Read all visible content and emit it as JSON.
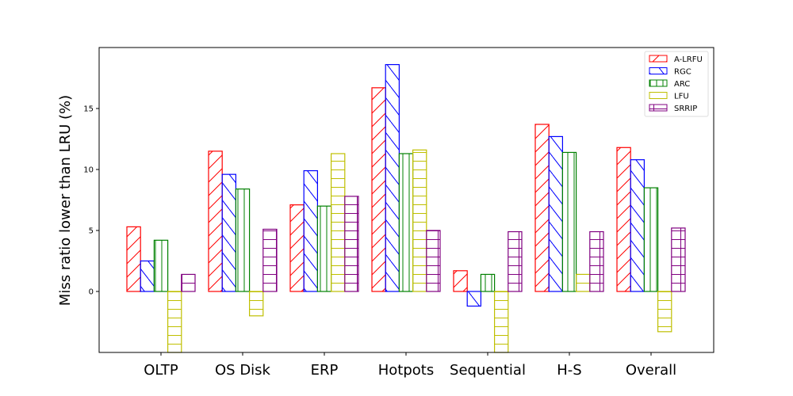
{
  "chart_data": {
    "type": "bar",
    "categories": [
      "OLTP",
      "OS Disk",
      "ERP",
      "Hotpots",
      "Sequential",
      "H-S",
      "Overall"
    ],
    "series": [
      {
        "name": "A-LRFU",
        "values": [
          5.3,
          11.5,
          7.1,
          16.7,
          1.7,
          13.7,
          11.8
        ],
        "color": "#ff0000",
        "hatch": "diagonal-up"
      },
      {
        "name": "RGC",
        "values": [
          2.5,
          9.6,
          9.9,
          18.6,
          -1.2,
          12.7,
          10.8
        ],
        "color": "#0000ff",
        "hatch": "diagonal-down"
      },
      {
        "name": "ARC",
        "values": [
          4.2,
          8.4,
          7.0,
          11.3,
          1.4,
          11.4,
          8.5
        ],
        "color": "#008000",
        "hatch": "vertical"
      },
      {
        "name": "LFU",
        "values": [
          -6.0,
          -2.0,
          11.3,
          11.6,
          -6.0,
          1.4,
          -3.3
        ],
        "color": "#bfbf00",
        "hatch": "horizontal"
      },
      {
        "name": "SRRIP",
        "values": [
          1.4,
          5.1,
          7.8,
          5.0,
          4.9,
          4.9,
          5.2
        ],
        "color": "#800080",
        "hatch": "grid"
      }
    ],
    "title": "",
    "xlabel": "",
    "ylabel": "Miss ratio lower than LRU (%)",
    "ylim": [
      -5,
      20
    ],
    "yticks": [
      "0",
      "5",
      "10",
      "15"
    ],
    "grid": false,
    "legend_position": "top-right"
  }
}
